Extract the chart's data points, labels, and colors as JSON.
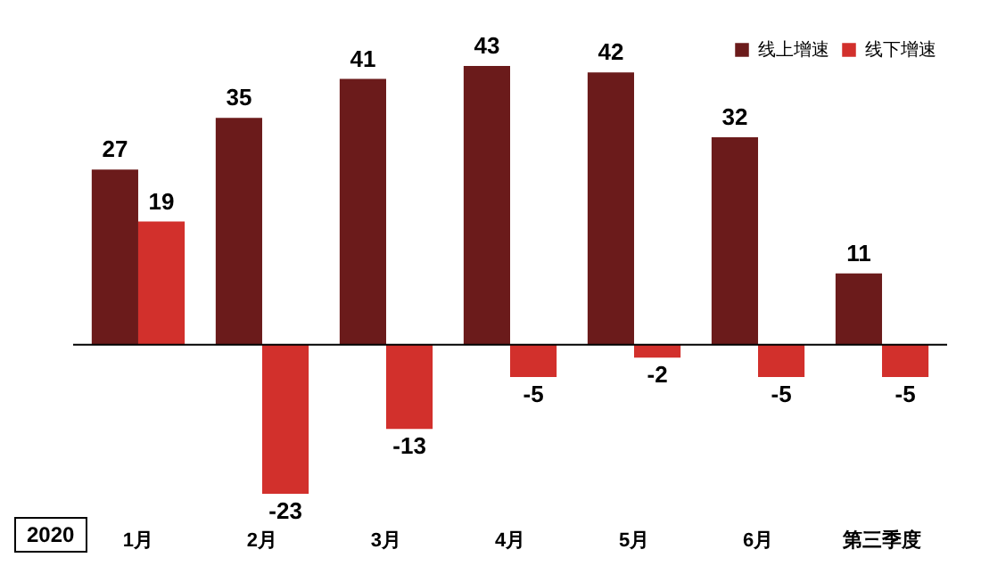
{
  "chart_data": {
    "type": "bar",
    "categories": [
      "1月",
      "2月",
      "3月",
      "4月",
      "5月",
      "6月",
      "第三季度"
    ],
    "series": [
      {
        "name": "线上增速",
        "color": "#6b1b1b",
        "values": [
          27,
          35,
          41,
          43,
          42,
          32,
          11
        ]
      },
      {
        "name": "线下增速",
        "color": "#d2302c",
        "values": [
          19,
          -23,
          -13,
          -5,
          -2,
          -5,
          -5
        ]
      }
    ],
    "data_labels": true,
    "legend": "top right",
    "annotations": [
      "2020"
    ]
  }
}
